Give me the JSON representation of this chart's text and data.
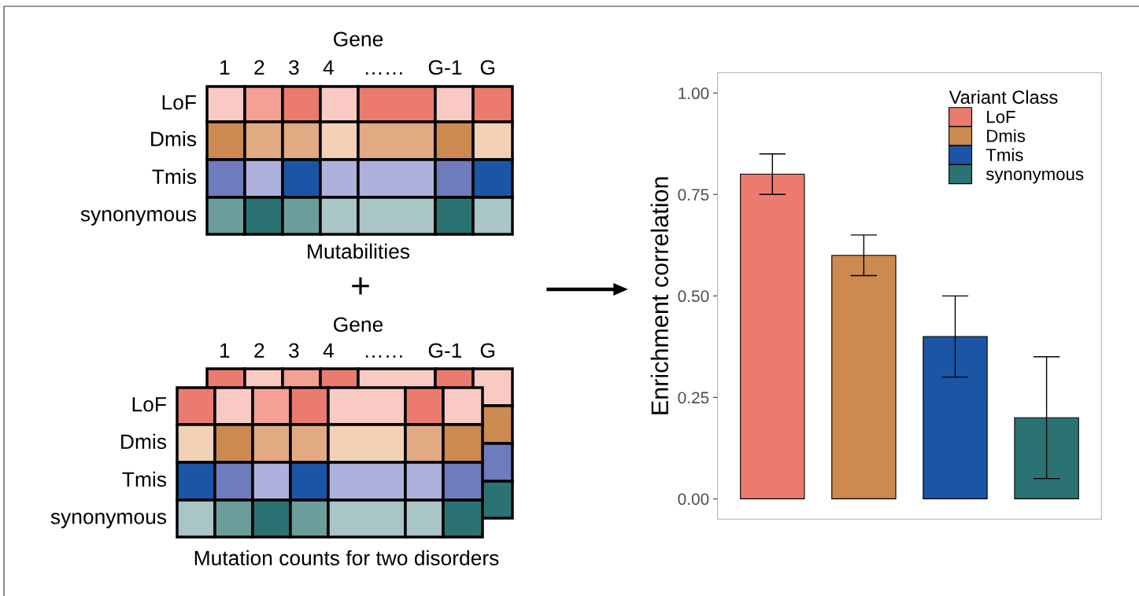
{
  "chart_data": [
    {
      "type": "other",
      "annotations": [
        "Gene",
        "1    2    3    4     ……    G-1   G",
        "LoF",
        "Dmis",
        "Tmis",
        "synonymous",
        "Mutabilities",
        "+",
        "Gene",
        "1    2    3    4     ……    G-1   G",
        "LoF",
        "Dmis",
        "Tmis",
        "synonymous",
        "Mutation counts for two disorders"
      ]
    },
    {
      "type": "bar",
      "ylabel": "Enrichment correlation",
      "legend_title": "Variant Class",
      "categories": [
        null,
        null,
        null,
        null
      ],
      "series": [
        {
          "name": "LoF",
          "color": "#ec7b6f",
          "values": [
            0.8,
            null,
            null,
            null
          ],
          "errors": [
            0.05,
            null,
            null,
            null
          ]
        },
        {
          "name": "Dmis",
          "color": "#cc8a50",
          "values": [
            null,
            0.6,
            null,
            null
          ],
          "errors": [
            null,
            0.05,
            null,
            null
          ]
        },
        {
          "name": "Tmis",
          "color": "#1a56a5",
          "values": [
            null,
            null,
            0.4,
            null
          ],
          "errors": [
            null,
            null,
            0.1,
            null
          ]
        },
        {
          "name": "synonymous",
          "color": "#2b7373",
          "values": [
            null,
            null,
            null,
            0.2
          ],
          "errors": [
            null,
            null,
            null,
            0.15
          ]
        }
      ],
      "ylim": [
        -0.05,
        1.05
      ],
      "yticks": [
        {
          "value": 0,
          "label": "0.00"
        },
        {
          "value": 0.25,
          "label": "0.25"
        },
        {
          "value": 0.5,
          "label": "0.50"
        },
        {
          "value": 0.75,
          "label": "0.75"
        },
        {
          "value": 1,
          "label": "1.00"
        }
      ],
      "grid": false,
      "legend": "top right",
      "tick_labels": "y"
    }
  ]
}
